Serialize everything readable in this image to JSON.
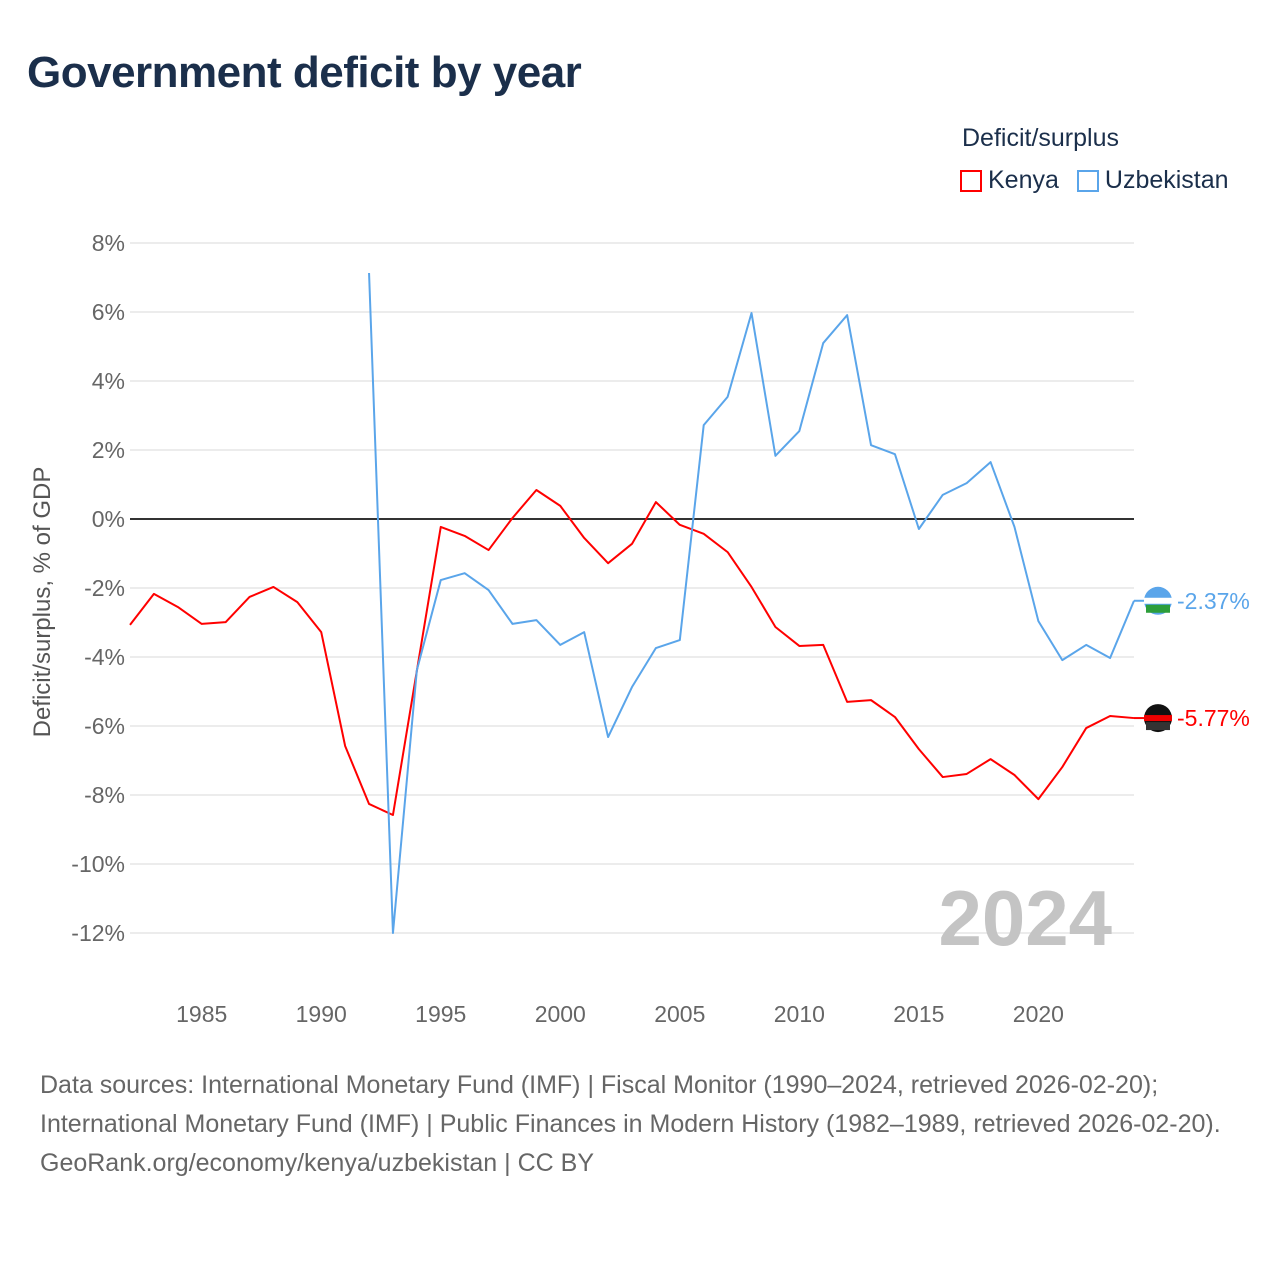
{
  "chart_data": {
    "type": "line",
    "title": "Government deficit by year",
    "ylabel": "Deficit/surplus, % of GDP",
    "xlabel": "",
    "ylim": [
      -12,
      8
    ],
    "xlim": [
      1982,
      2024
    ],
    "yticks": [
      8,
      6,
      4,
      2,
      0,
      -2,
      -4,
      -6,
      -8,
      -10,
      -12
    ],
    "ytick_labels": [
      "8%",
      "6%",
      "4%",
      "2%",
      "0%",
      "-2%",
      "-4%",
      "-6%",
      "-8%",
      "-10%",
      "-12%"
    ],
    "xticks": [
      1985,
      1990,
      1995,
      2000,
      2005,
      2010,
      2015,
      2020
    ],
    "xtick_labels": [
      "1985",
      "1990",
      "1995",
      "2000",
      "2005",
      "2010",
      "2015",
      "2020"
    ],
    "grid": true,
    "legend_title": "Deficit/surplus",
    "legend_position": "top-right",
    "year_watermark": "2024",
    "series": [
      {
        "name": "Kenya",
        "color": "#ff0000",
        "end_label": "-5.77%",
        "x": [
          1982,
          1983,
          1984,
          1985,
          1986,
          1987,
          1988,
          1989,
          1990,
          1991,
          1992,
          1993,
          1994,
          1995,
          1996,
          1997,
          1998,
          1999,
          2000,
          2001,
          2002,
          2003,
          2004,
          2005,
          2006,
          2007,
          2008,
          2009,
          2010,
          2011,
          2012,
          2013,
          2014,
          2015,
          2016,
          2017,
          2018,
          2019,
          2020,
          2021,
          2022,
          2023,
          2024
        ],
        "values": [
          -3.07,
          -2.17,
          -2.55,
          -3.04,
          -2.99,
          -2.26,
          -1.97,
          -2.41,
          -3.28,
          -6.58,
          -8.26,
          -8.58,
          -4.4,
          -0.23,
          -0.49,
          -0.9,
          0.03,
          0.84,
          0.38,
          -0.55,
          -1.28,
          -0.72,
          0.49,
          -0.17,
          -0.43,
          -0.96,
          -1.97,
          -3.13,
          -3.68,
          -3.65,
          -5.3,
          -5.25,
          -5.74,
          -6.67,
          -7.48,
          -7.39,
          -6.96,
          -7.42,
          -8.12,
          -7.19,
          -6.06,
          -5.71,
          -5.77
        ]
      },
      {
        "name": "Uzbekistan",
        "color": "#5aa5ea",
        "end_label": "-2.37%",
        "x": [
          1992,
          1993,
          1994,
          1995,
          1996,
          1997,
          1998,
          1999,
          2000,
          2001,
          2002,
          2003,
          2004,
          2005,
          2006,
          2007,
          2008,
          2009,
          2010,
          2011,
          2012,
          2013,
          2014,
          2015,
          2016,
          2017,
          2018,
          2019,
          2020,
          2021,
          2022,
          2023,
          2024
        ],
        "values": [
          7.13,
          -12.0,
          -4.38,
          -1.77,
          -1.57,
          -2.06,
          -3.04,
          -2.93,
          -3.65,
          -3.28,
          -6.32,
          -4.87,
          -3.74,
          -3.51,
          2.72,
          3.54,
          5.97,
          1.83,
          2.55,
          5.1,
          5.91,
          2.14,
          1.88,
          -0.29,
          0.7,
          1.04,
          1.65,
          -0.23,
          -2.96,
          -4.09,
          -3.65,
          -4.03,
          -2.37
        ]
      }
    ]
  },
  "footer": {
    "sources": "Data sources: International Monetary Fund (IMF) | Fiscal Monitor (1990–2024, retrieved 2026-02-20); International Monetary Fund (IMF) | Public Finances in Modern History (1982–1989, retrieved 2026-02-20).",
    "credit": "GeoRank.org/economy/kenya/uzbekistan | CC BY"
  }
}
